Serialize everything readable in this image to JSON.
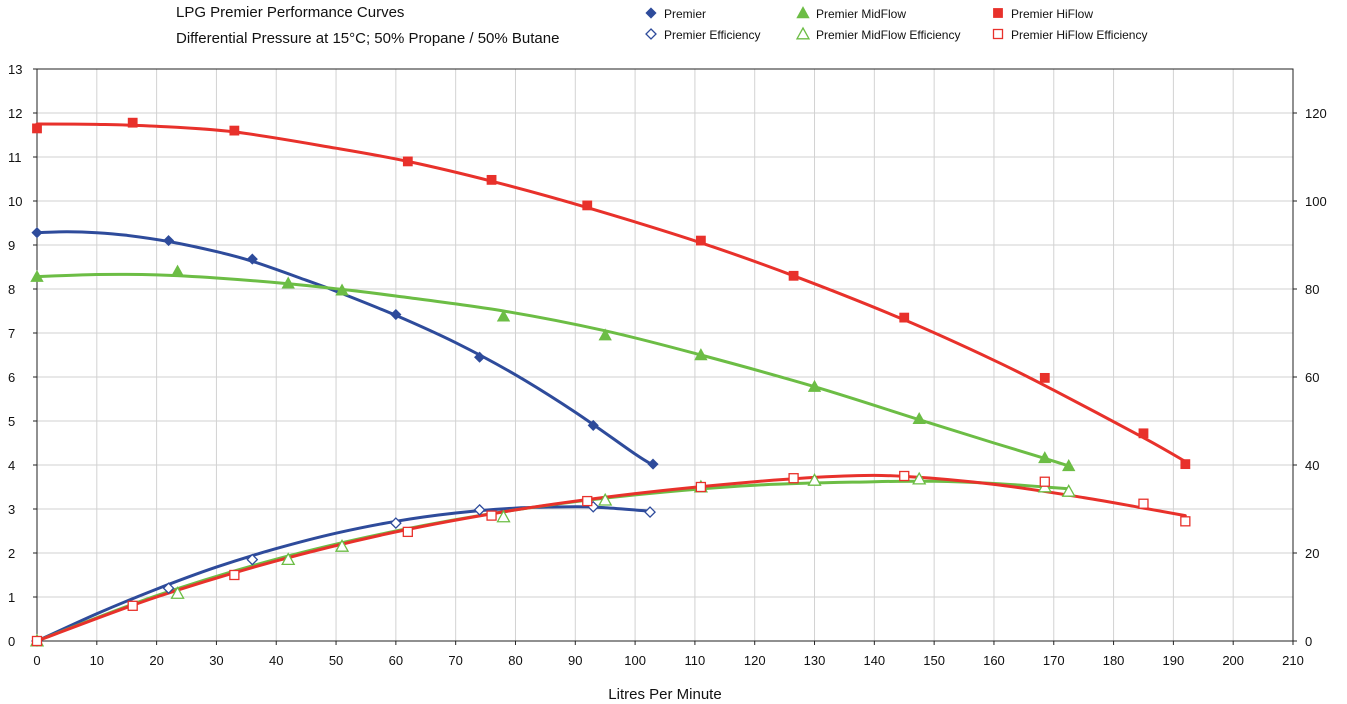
{
  "chart_data": {
    "type": "scatter",
    "title": "LPG Premier Performance Curves",
    "subtitle": "Differential Pressure at 15°C; 50% Propane / 50% Butane",
    "xlabel": "Litres Per Minute",
    "ylabel": "",
    "y2label": "",
    "xlim": [
      0,
      210
    ],
    "ylim": [
      0,
      13
    ],
    "y2lim": [
      0,
      130
    ],
    "x_ticks": [
      0,
      10,
      20,
      30,
      40,
      50,
      60,
      70,
      80,
      90,
      100,
      110,
      120,
      130,
      140,
      150,
      160,
      170,
      180,
      190,
      200,
      210
    ],
    "y_ticks": [
      0,
      1,
      2,
      3,
      4,
      5,
      6,
      7,
      8,
      9,
      10,
      11,
      12,
      13
    ],
    "y2_ticks": [
      0,
      20,
      40,
      60,
      80,
      100,
      120
    ],
    "grid": true,
    "legend_position": "top-right",
    "series": [
      {
        "name": "Premier",
        "axis": "left",
        "marker": "diamond-filled",
        "color": "#2e4b9b",
        "x": [
          0,
          22,
          36,
          60,
          74,
          93,
          103
        ],
        "y": [
          9.28,
          9.1,
          8.68,
          7.42,
          6.45,
          4.9,
          4.02
        ],
        "trend": [
          [
            0,
            9.28
          ],
          [
            5,
            9.3
          ],
          [
            10,
            9.28
          ],
          [
            15,
            9.22
          ],
          [
            22,
            9.08
          ],
          [
            30,
            8.85
          ],
          [
            36,
            8.63
          ],
          [
            45,
            8.2
          ],
          [
            50,
            7.95
          ],
          [
            60,
            7.4
          ],
          [
            70,
            6.78
          ],
          [
            80,
            6.05
          ],
          [
            90,
            5.2
          ],
          [
            100,
            4.25
          ],
          [
            103,
            4.0
          ]
        ]
      },
      {
        "name": "Premier Efficiency",
        "axis": "right",
        "marker": "diamond-open",
        "color": "#2e4b9b",
        "x": [
          0,
          22,
          36,
          60,
          74,
          93,
          102.5
        ],
        "y": [
          0,
          12,
          18.5,
          26.8,
          29.8,
          30.5,
          29.3
        ],
        "trend": [
          [
            0,
            0
          ],
          [
            10,
            6.2
          ],
          [
            20,
            11.8
          ],
          [
            30,
            16.8
          ],
          [
            40,
            21.0
          ],
          [
            50,
            24.5
          ],
          [
            60,
            27.2
          ],
          [
            70,
            29.1
          ],
          [
            80,
            30.2
          ],
          [
            90,
            30.5
          ],
          [
            95,
            30.3
          ],
          [
            102.5,
            29.5
          ]
        ]
      },
      {
        "name": "Premier MidFlow",
        "axis": "left",
        "marker": "triangle-filled",
        "color": "#6cbd45",
        "x": [
          0,
          23.5,
          42,
          51,
          78,
          95,
          111,
          130,
          147.5,
          168.5,
          172.5
        ],
        "y": [
          8.28,
          8.4,
          8.13,
          7.97,
          7.38,
          6.95,
          6.5,
          5.78,
          5.05,
          4.16,
          3.98
        ],
        "trend": [
          [
            0,
            8.28
          ],
          [
            10,
            8.33
          ],
          [
            20,
            8.32
          ],
          [
            30,
            8.25
          ],
          [
            42,
            8.12
          ],
          [
            51,
            7.99
          ],
          [
            60,
            7.84
          ],
          [
            78,
            7.5
          ],
          [
            95,
            7.05
          ],
          [
            111,
            6.5
          ],
          [
            130,
            5.78
          ],
          [
            147.5,
            5.03
          ],
          [
            160,
            4.5
          ],
          [
            168.5,
            4.15
          ],
          [
            172.5,
            3.98
          ]
        ]
      },
      {
        "name": "Premier MidFlow Efficiency",
        "axis": "right",
        "marker": "triangle-open",
        "color": "#6cbd45",
        "x": [
          0,
          23.5,
          42,
          51,
          78,
          95,
          111,
          130,
          147.5,
          168.5,
          172.5
        ],
        "y": [
          0,
          10.8,
          18.5,
          21.5,
          28.2,
          32,
          35,
          36.5,
          36.8,
          35,
          34
        ],
        "trend": [
          [
            0,
            0
          ],
          [
            20,
            10.3
          ],
          [
            40,
            18.6
          ],
          [
            60,
            25.0
          ],
          [
            80,
            29.8
          ],
          [
            100,
            33.2
          ],
          [
            120,
            35.4
          ],
          [
            140,
            36.2
          ],
          [
            150,
            36.3
          ],
          [
            160,
            35.8
          ],
          [
            168.5,
            35.0
          ],
          [
            172.5,
            34.6
          ]
        ]
      },
      {
        "name": "Premier HiFlow",
        "axis": "left",
        "marker": "square-filled",
        "color": "#e8312b",
        "x": [
          0,
          16,
          33,
          62,
          76,
          92,
          111,
          126.5,
          145,
          168.5,
          185,
          192
        ],
        "y": [
          11.65,
          11.78,
          11.6,
          10.9,
          10.48,
          9.9,
          9.1,
          8.3,
          7.35,
          5.98,
          4.72,
          4.02
        ],
        "trend": [
          [
            0,
            11.75
          ],
          [
            10,
            11.74
          ],
          [
            20,
            11.7
          ],
          [
            33,
            11.57
          ],
          [
            50,
            11.2
          ],
          [
            62,
            10.9
          ],
          [
            76,
            10.45
          ],
          [
            92,
            9.85
          ],
          [
            111,
            9.05
          ],
          [
            126.5,
            8.3
          ],
          [
            145,
            7.3
          ],
          [
            160,
            6.38
          ],
          [
            170,
            5.7
          ],
          [
            185,
            4.62
          ],
          [
            192,
            4.08
          ]
        ]
      },
      {
        "name": "Premier HiFlow Efficiency",
        "axis": "right",
        "marker": "square-open",
        "color": "#e8312b",
        "x": [
          0,
          16,
          33,
          62,
          76,
          92,
          111,
          126.5,
          145,
          168.5,
          185,
          192
        ],
        "y": [
          0,
          8,
          15,
          24.8,
          28.5,
          31.8,
          35,
          37,
          37.5,
          36.2,
          31.2,
          27.2
        ],
        "trend": [
          [
            0,
            0
          ],
          [
            20,
            10.0
          ],
          [
            40,
            18.2
          ],
          [
            60,
            24.8
          ],
          [
            80,
            29.8
          ],
          [
            100,
            33.5
          ],
          [
            120,
            36.2
          ],
          [
            135,
            37.5
          ],
          [
            145,
            37.4
          ],
          [
            160,
            35.6
          ],
          [
            175,
            32.6
          ],
          [
            185,
            30.2
          ],
          [
            192,
            28.5
          ]
        ]
      }
    ]
  }
}
